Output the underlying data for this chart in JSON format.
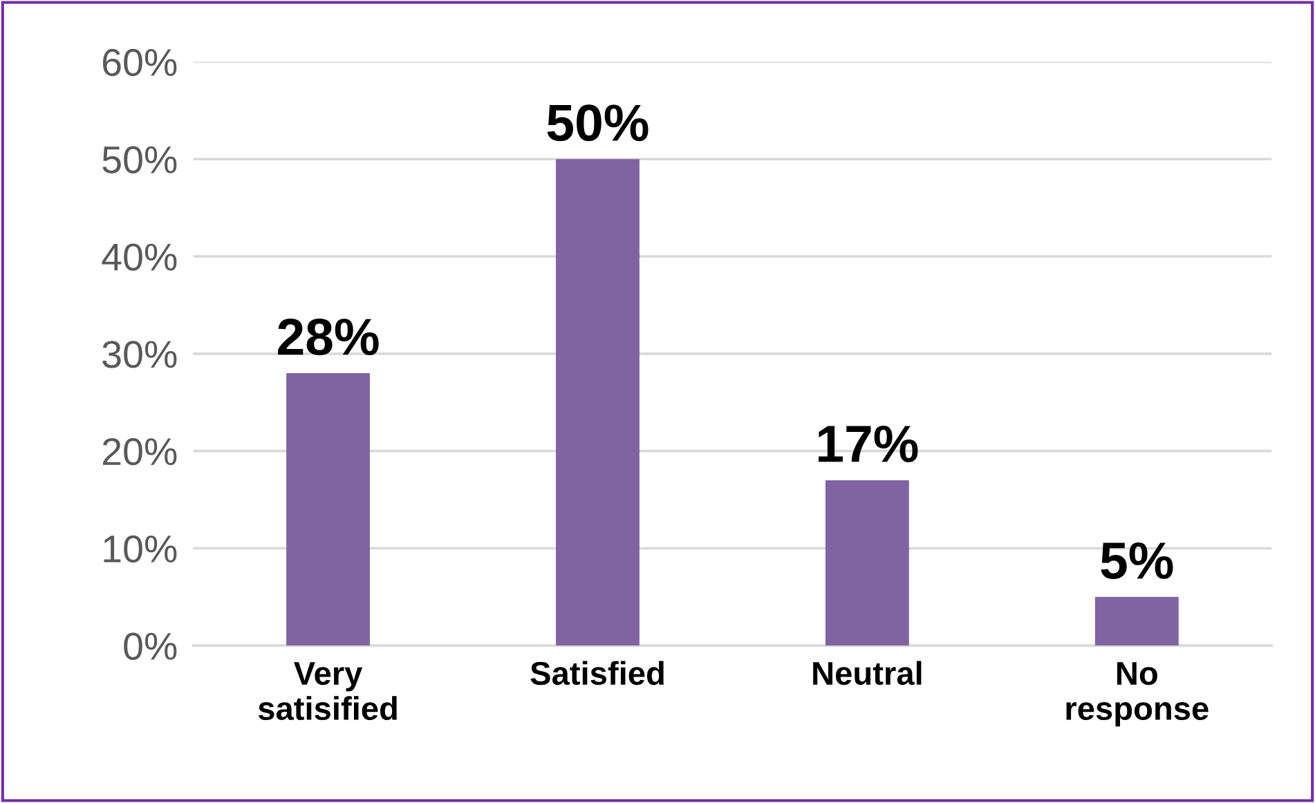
{
  "chart_data": {
    "type": "bar",
    "categories": [
      "Very\nsatisified",
      "Satisfied",
      "Neutral",
      "No\nresponse"
    ],
    "values": [
      28,
      50,
      17,
      5
    ],
    "value_labels": [
      "28%",
      "50%",
      "17%",
      "5%"
    ],
    "color": "#8064a2",
    "ylim": [
      0,
      60
    ],
    "yticks": [
      {
        "value": 0,
        "label": "0%"
      },
      {
        "value": 10,
        "label": "10%"
      },
      {
        "value": 20,
        "label": "20%"
      },
      {
        "value": 30,
        "label": "30%"
      },
      {
        "value": 40,
        "label": "40%"
      },
      {
        "value": 50,
        "label": "50%"
      },
      {
        "value": 60,
        "label": "60%"
      }
    ],
    "grid": "y",
    "legend": false
  }
}
